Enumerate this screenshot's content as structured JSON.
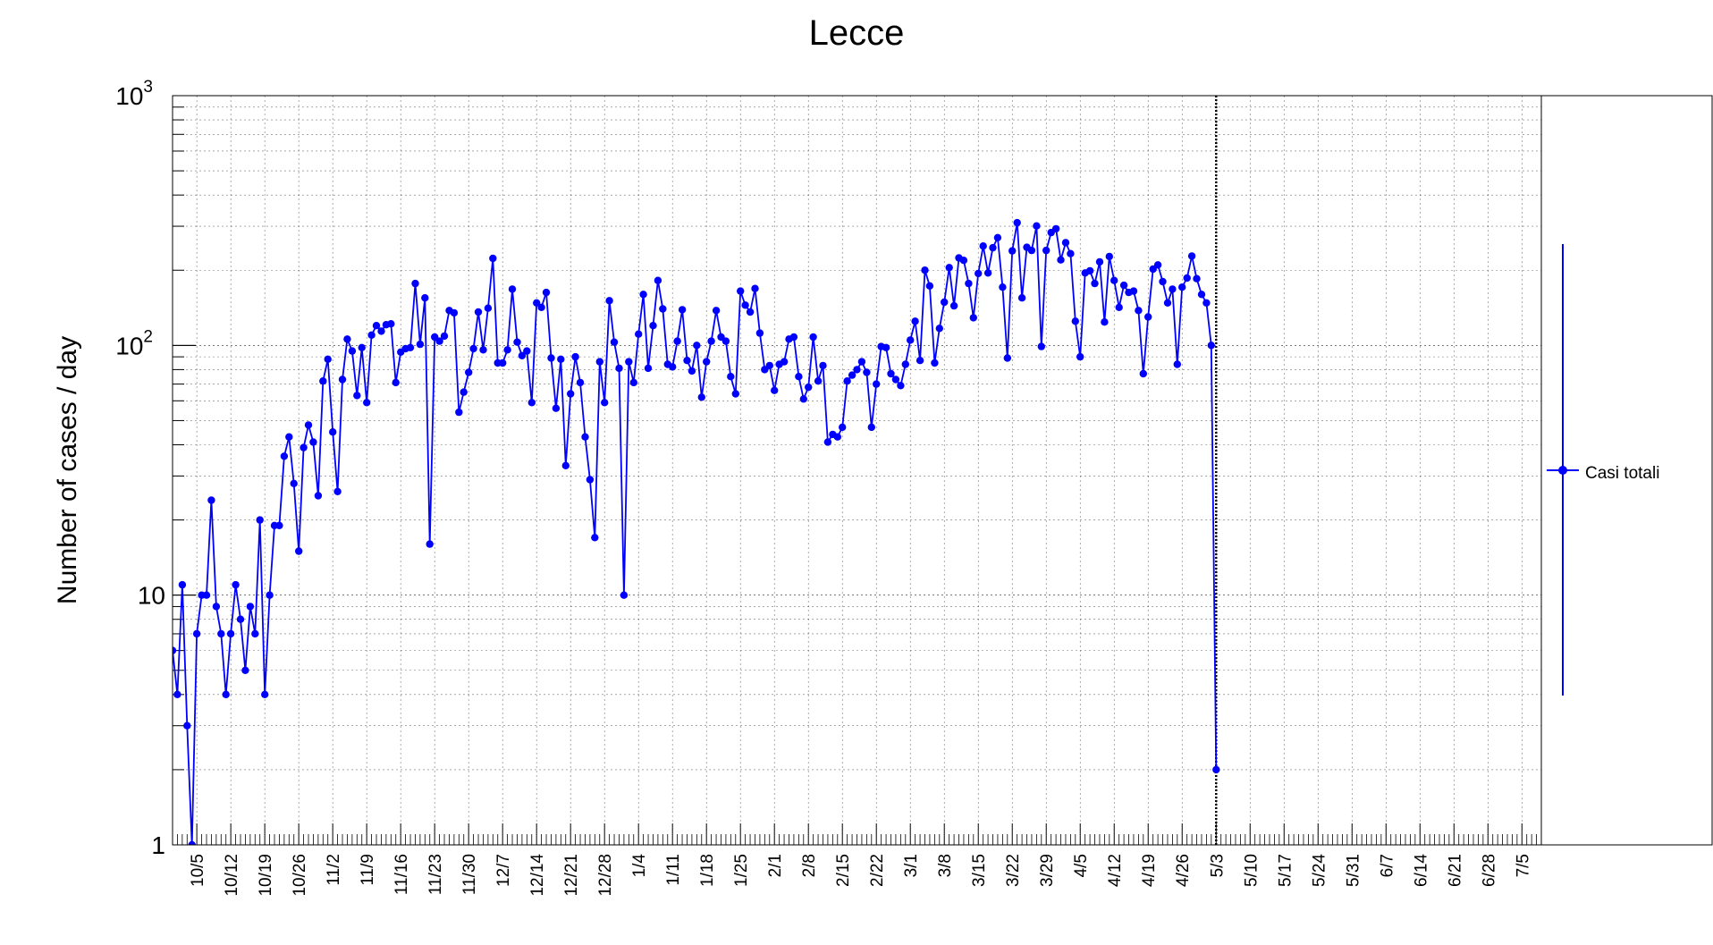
{
  "chart_data": {
    "type": "line",
    "title": "Lecce",
    "xlabel": "",
    "ylabel": "Number of cases / day",
    "y_scale": "log",
    "ylim": [
      1,
      1000
    ],
    "y_tick_labels": [
      {
        "value": 1,
        "label": "1"
      },
      {
        "value": 10,
        "label": "10"
      },
      {
        "value": 100,
        "label": "10",
        "exp": "2"
      },
      {
        "value": 1000,
        "label": "10",
        "exp": "3"
      }
    ],
    "x_tick_labels": [
      "10/5",
      "10/12",
      "10/19",
      "10/26",
      "11/2",
      "11/9",
      "11/16",
      "11/23",
      "11/30",
      "12/7",
      "12/14",
      "12/21",
      "12/28",
      "1/4",
      "1/11",
      "1/18",
      "1/25",
      "2/1",
      "2/8",
      "2/15",
      "2/22",
      "3/1",
      "3/8",
      "3/15",
      "3/22",
      "3/29",
      "4/5",
      "4/12",
      "4/19",
      "4/26",
      "5/3",
      "5/10",
      "5/17",
      "5/24",
      "5/31",
      "6/7",
      "6/14",
      "6/21",
      "6/28",
      "7/5"
    ],
    "x_domain_days": [
      -5,
      277
    ],
    "first_point_date": "9/30",
    "grid": true,
    "legend_position": "right",
    "vertical_marker_label": "5/3",
    "series": [
      {
        "name": "Casi totali",
        "color": "#0000ff",
        "values": [
          6,
          4,
          11,
          3,
          1,
          7,
          10,
          10,
          24,
          9,
          7,
          4,
          7,
          11,
          8,
          5,
          9,
          7,
          20,
          4,
          10,
          19,
          19,
          36,
          43,
          28,
          15,
          39,
          48,
          41,
          25,
          72,
          88,
          45,
          26,
          73,
          106,
          95,
          63,
          98,
          59,
          110,
          120,
          114,
          121,
          122,
          71,
          94,
          97,
          98,
          177,
          101,
          155,
          16,
          108,
          104,
          109,
          138,
          135,
          54,
          65,
          78,
          97,
          136,
          96,
          141,
          223,
          85,
          85,
          96,
          168,
          103,
          91,
          95,
          59,
          148,
          142,
          163,
          89,
          56,
          88,
          33,
          64,
          90,
          71,
          43,
          29,
          17,
          86,
          59,
          151,
          103,
          81,
          10,
          86,
          71,
          111,
          160,
          81,
          120,
          182,
          140,
          84,
          82,
          104,
          139,
          87,
          79,
          100,
          62,
          86,
          104,
          138,
          108,
          104,
          75,
          64,
          165,
          145,
          136,
          169,
          112,
          80,
          83,
          66,
          84,
          86,
          106,
          108,
          75,
          61,
          68,
          108,
          72,
          83,
          41,
          44,
          43,
          47,
          72,
          76,
          80,
          86,
          78,
          47,
          70,
          99,
          98,
          77,
          73,
          69,
          84,
          105,
          125,
          87,
          200,
          173,
          85,
          117,
          149,
          205,
          144,
          224,
          219,
          177,
          129,
          194,
          250,
          195,
          246,
          270,
          171,
          89,
          239,
          310,
          155,
          247,
          240,
          301,
          99,
          240,
          283,
          293,
          220,
          258,
          233,
          125,
          90,
          195,
          199,
          177,
          216,
          124,
          227,
          182,
          142,
          174,
          163,
          165,
          138,
          77,
          130,
          202,
          210,
          180,
          148,
          168,
          84,
          171,
          186,
          228,
          185,
          160,
          148,
          100,
          2
        ]
      }
    ]
  }
}
